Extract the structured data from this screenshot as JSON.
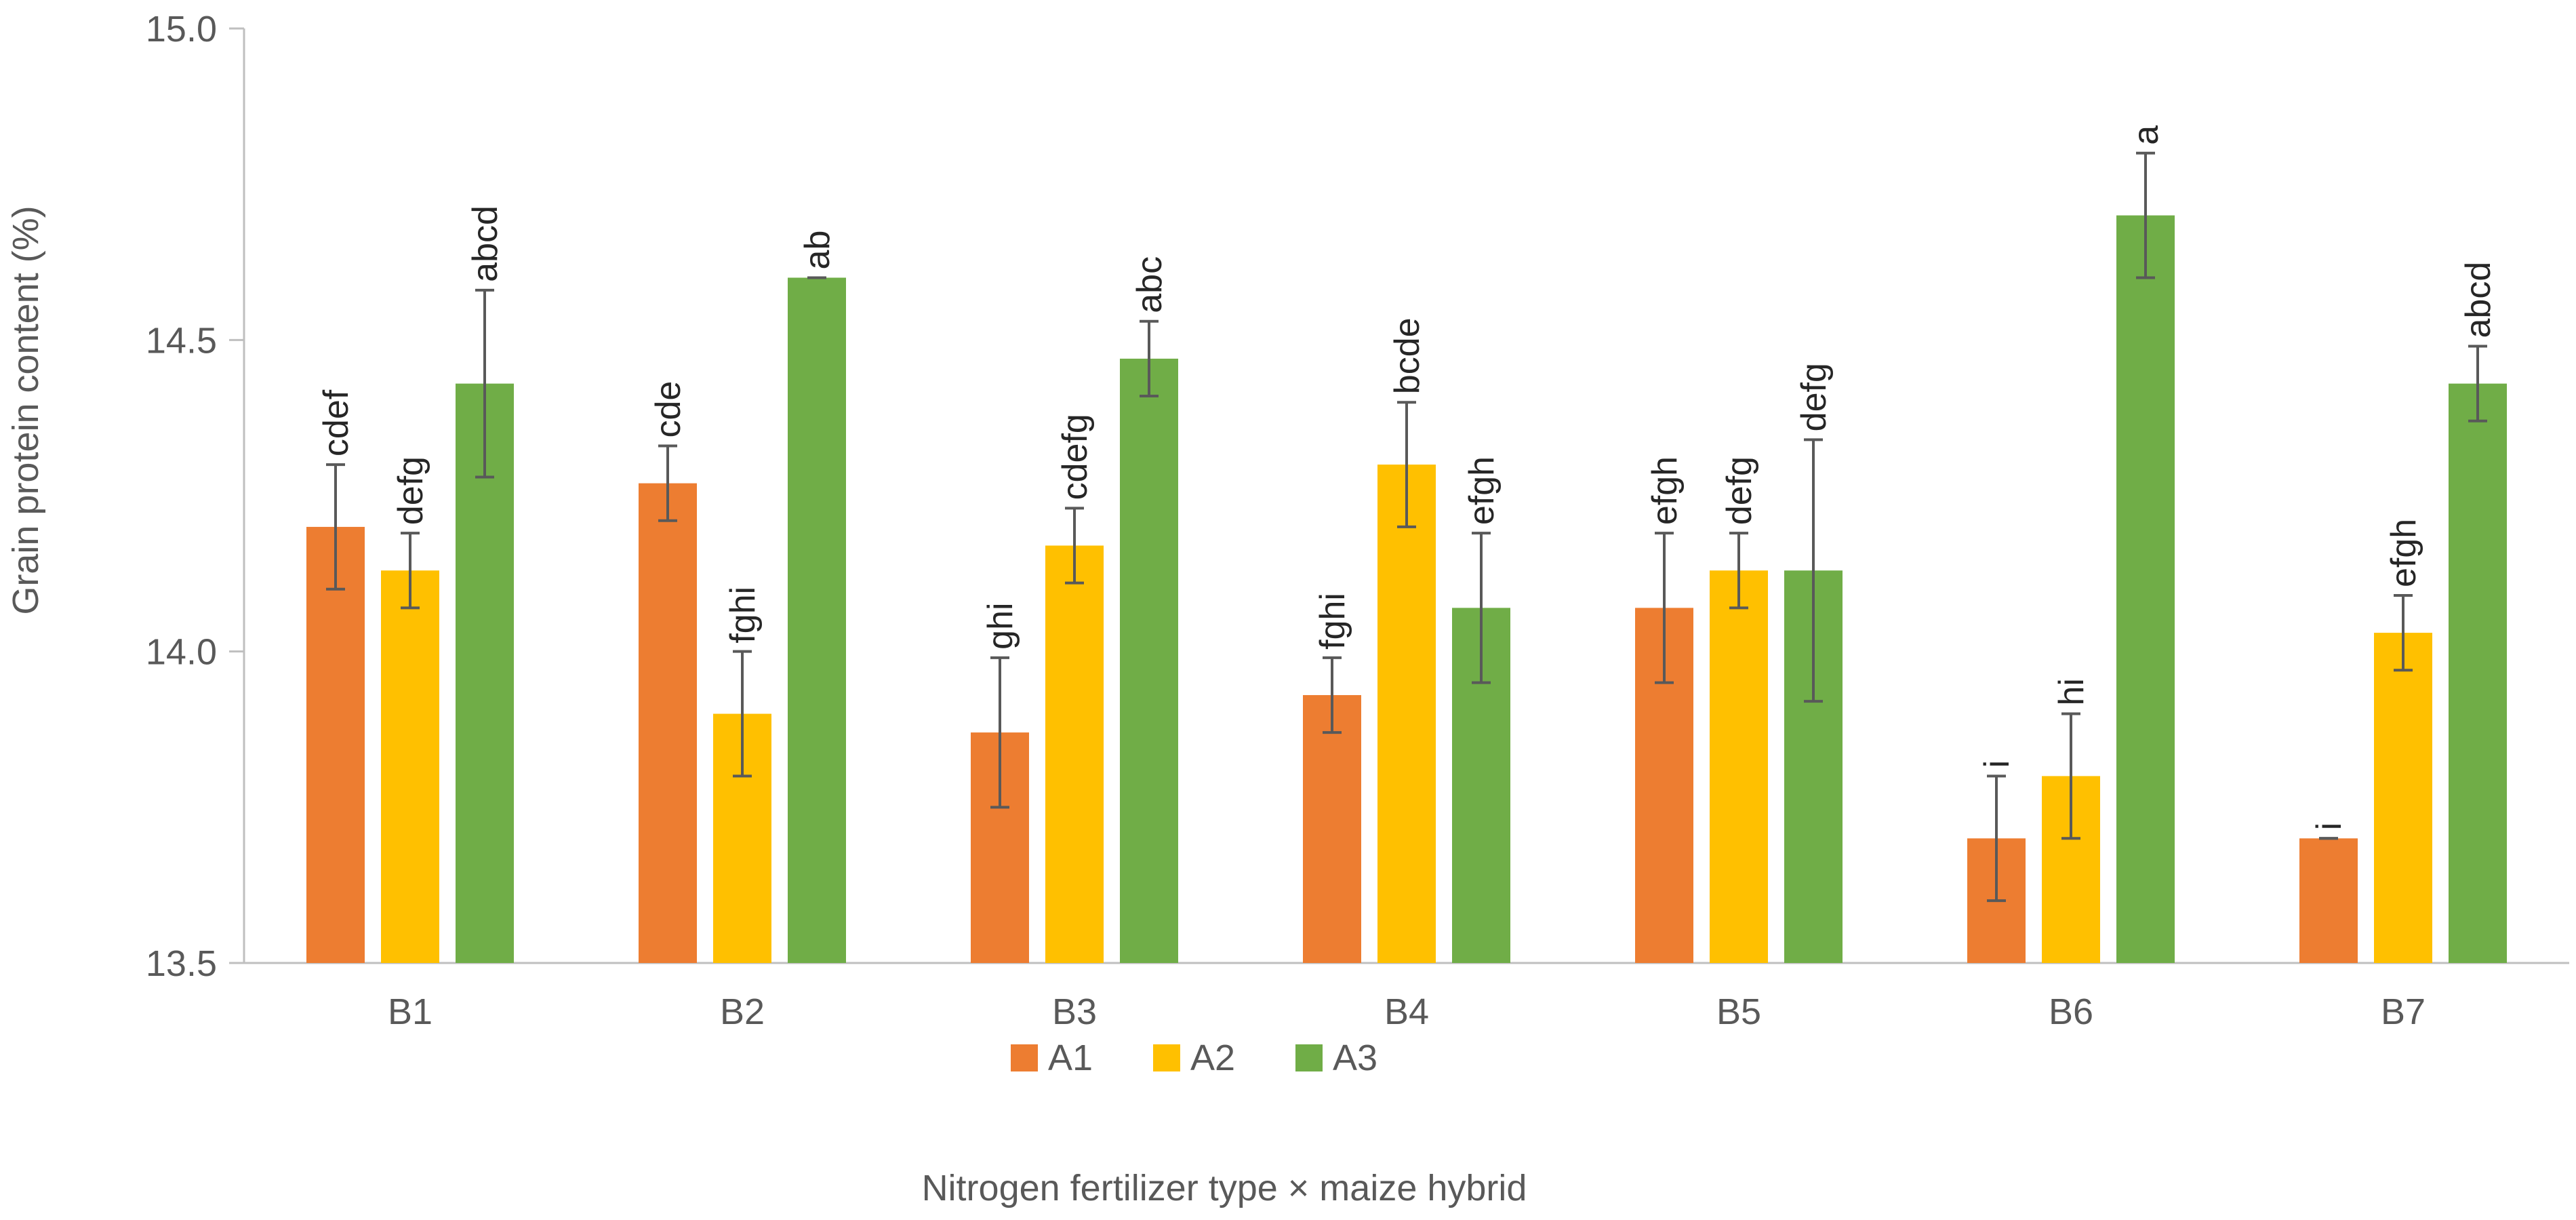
{
  "chart_data": {
    "type": "bar",
    "title": "",
    "xlabel": "Nitrogen fertilizer type × maize hybrid",
    "ylabel": "Grain protein content (%)",
    "ylim": [
      13.5,
      15.0
    ],
    "yticks": [
      13.5,
      14.0,
      14.5,
      15.0
    ],
    "ytick_labels": [
      "13.5",
      "14.0",
      "14.5",
      "15.0"
    ],
    "grid": false,
    "legend_position": "bottom-center",
    "categories": [
      "B1",
      "B2",
      "B3",
      "B4",
      "B5",
      "B6",
      "B7"
    ],
    "series": [
      {
        "name": "A1",
        "color": "#ED7D31",
        "values": [
          14.2,
          14.27,
          13.87,
          13.93,
          14.07,
          13.7,
          13.7
        ],
        "errors": [
          0.1,
          0.06,
          0.12,
          0.06,
          0.12,
          0.1,
          0.0
        ],
        "letters": [
          "cdef",
          "cde",
          "ghi",
          "fghi",
          "efgh",
          "i",
          "i"
        ]
      },
      {
        "name": "A2",
        "color": "#FFC000",
        "values": [
          14.13,
          13.9,
          14.17,
          14.3,
          14.13,
          13.8,
          14.03
        ],
        "errors": [
          0.06,
          0.1,
          0.06,
          0.1,
          0.06,
          0.1,
          0.06
        ],
        "letters": [
          "defg",
          "fghi",
          "cdefg",
          "bcde",
          "defg",
          "hi",
          "efgh"
        ]
      },
      {
        "name": "A3",
        "color": "#70AD47",
        "values": [
          14.43,
          14.6,
          14.47,
          14.07,
          14.13,
          14.7,
          14.43
        ],
        "errors": [
          0.15,
          0.0,
          0.06,
          0.12,
          0.21,
          0.1,
          0.06
        ],
        "letters": [
          "abcd",
          "ab",
          "abc",
          "efgh",
          "defg",
          "a",
          "abcd"
        ]
      }
    ]
  }
}
